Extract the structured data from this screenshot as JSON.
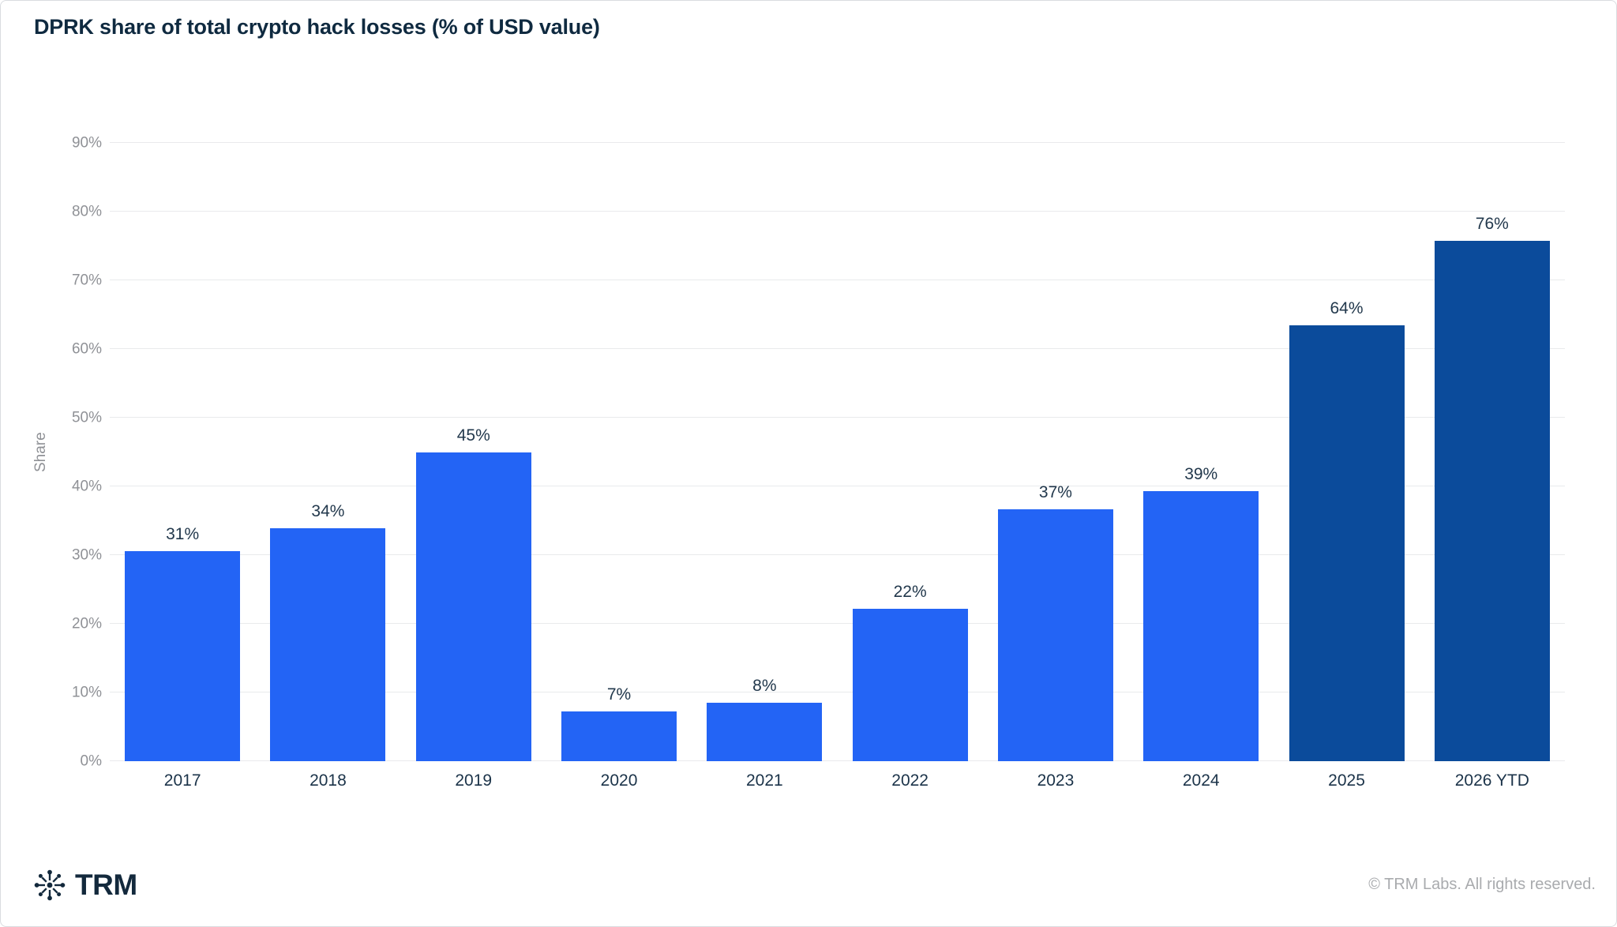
{
  "page": {
    "title": "DPRK share of total crypto hack losses (% of USD value)"
  },
  "chart_data": {
    "type": "bar",
    "title": "DPRK share of total crypto hack losses (% of USD value)",
    "xlabel": "",
    "ylabel": "Share",
    "categories": [
      "2017",
      "2018",
      "2019",
      "2020",
      "2021",
      "2022",
      "2023",
      "2024",
      "2025",
      "2026 YTD"
    ],
    "values": [
      30.6,
      33.9,
      44.9,
      7.3,
      8.5,
      22.2,
      36.7,
      39.3,
      63.5,
      75.8
    ],
    "value_labels": [
      "31%",
      "34%",
      "45%",
      "7%",
      "8%",
      "22%",
      "37%",
      "39%",
      "64%",
      "76%"
    ],
    "bar_colors": [
      "#2364f5",
      "#2364f5",
      "#2364f5",
      "#2364f5",
      "#2364f5",
      "#2364f5",
      "#2364f5",
      "#2364f5",
      "#0b4b9b",
      "#0b4b9b"
    ],
    "y_ticks": [
      {
        "value": 0,
        "label": "0%"
      },
      {
        "value": 10,
        "label": "10%"
      },
      {
        "value": 20,
        "label": "20%"
      },
      {
        "value": 30,
        "label": "30%"
      },
      {
        "value": 40,
        "label": "40%"
      },
      {
        "value": 50,
        "label": "50%"
      },
      {
        "value": 60,
        "label": "60%"
      },
      {
        "value": 70,
        "label": "70%"
      },
      {
        "value": 80,
        "label": "80%"
      },
      {
        "value": 90,
        "label": "90%"
      }
    ],
    "ylim": [
      0,
      90
    ],
    "grid": true,
    "legend_position": "none"
  },
  "footer": {
    "brand": "TRM",
    "copyright": "© TRM Labs. All rights reserved."
  },
  "colors": {
    "bar_primary": "#2364f5",
    "bar_highlight": "#0b4b9b",
    "title_text": "#0f2a40",
    "axis_text": "#8f9196",
    "grid_line": "#e9eaec",
    "value_label_text": "#22384c",
    "copyright_text": "#a9abae",
    "background": "#ffffff"
  }
}
